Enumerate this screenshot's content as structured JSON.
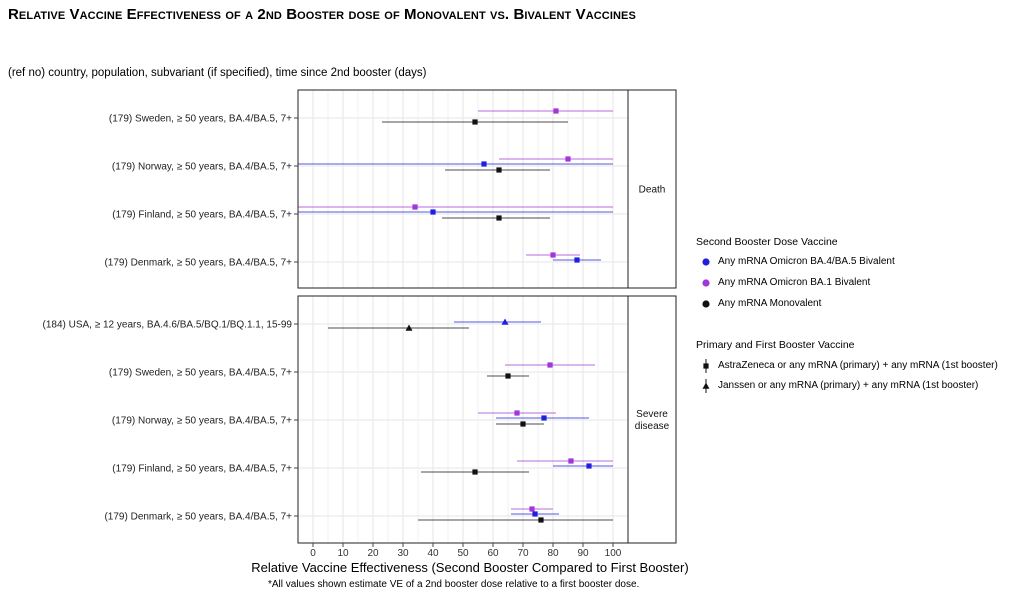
{
  "title": "Relative Vaccine Effectiveness of a 2nd Booster dose of Monovalent vs. Bivalent Vaccines",
  "subtitle": "(ref no) country, population, subvariant (if specified), time since 2nd booster (days)",
  "footnote": "*All values shown estimate VE of a 2nd booster dose relative to a first booster dose.",
  "colors": {
    "bivalent_ba45": "#1f1fe0",
    "bivalent_ba1": "#a236d6",
    "monovalent": "#111111",
    "panel_border": "#222222",
    "grid": "#e6e6e6"
  },
  "legend": {
    "color_title": "Second Booster Dose Vaccine",
    "color_items": [
      {
        "label": "Any mRNA Omicron BA.4/BA.5 Bivalent",
        "color": "#1f1fe0"
      },
      {
        "label": "Any mRNA Omicron BA.1 Bivalent",
        "color": "#a236d6"
      },
      {
        "label": "Any mRNA Monovalent",
        "color": "#111111"
      }
    ],
    "shape_title": "Primary and First Booster Vaccine",
    "shape_items": [
      {
        "label": "AstraZeneca or any mRNA (primary) + any mRNA (1st booster)",
        "shape": "square"
      },
      {
        "label": "Janssen or any mRNA (primary) + any mRNA (1st booster)",
        "shape": "triangle"
      }
    ]
  },
  "chart_data": {
    "type": "forest",
    "xlabel": "Relative Vaccine Effectiveness (Second Booster Compared to First Booster)",
    "xlim": [
      -5,
      105
    ],
    "xticks": [
      0,
      10,
      20,
      30,
      40,
      50,
      60,
      70,
      80,
      90,
      100
    ],
    "grid": true,
    "legend_position": "right",
    "panels": [
      {
        "label": "Death",
        "rows": [
          {
            "label": "(179) Sweden, ≥ 50 years, BA.4/BA.5, 7+",
            "estimates": [
              {
                "vaccine": "Any mRNA Omicron BA.1 Bivalent",
                "shape": "square",
                "ve": 81,
                "lo": 55,
                "hi": 100
              },
              {
                "vaccine": "Any mRNA Monovalent",
                "shape": "square",
                "ve": 54,
                "lo": 23,
                "hi": 85
              }
            ]
          },
          {
            "label": "(179) Norway, ≥ 50 years, BA.4/BA.5, 7+",
            "estimates": [
              {
                "vaccine": "Any mRNA Omicron BA.1 Bivalent",
                "shape": "square",
                "ve": 85,
                "lo": 62,
                "hi": 100
              },
              {
                "vaccine": "Any mRNA Omicron BA.4/BA.5 Bivalent",
                "shape": "square",
                "ve": 57,
                "lo": -5,
                "hi": 100
              },
              {
                "vaccine": "Any mRNA Monovalent",
                "shape": "square",
                "ve": 62,
                "lo": 44,
                "hi": 79
              }
            ]
          },
          {
            "label": "(179) Finland, ≥ 50 years, BA.4/BA.5, 7+",
            "estimates": [
              {
                "vaccine": "Any mRNA Omicron BA.1 Bivalent",
                "shape": "square",
                "ve": 34,
                "lo": -5,
                "hi": 100
              },
              {
                "vaccine": "Any mRNA Omicron BA.4/BA.5 Bivalent",
                "shape": "square",
                "ve": 40,
                "lo": -5,
                "hi": 100
              },
              {
                "vaccine": "Any mRNA Monovalent",
                "shape": "square",
                "ve": 62,
                "lo": 43,
                "hi": 79
              }
            ]
          },
          {
            "label": "(179) Denmark, ≥ 50 years, BA.4/BA.5, 7+",
            "estimates": [
              {
                "vaccine": "Any mRNA Omicron BA.1 Bivalent",
                "shape": "square",
                "ve": 80,
                "lo": 71,
                "hi": 89
              },
              {
                "vaccine": "Any mRNA Omicron BA.4/BA.5 Bivalent",
                "shape": "square",
                "ve": 88,
                "lo": 80,
                "hi": 96
              }
            ]
          }
        ]
      },
      {
        "label": "Severe disease",
        "rows": [
          {
            "label": "(184) USA, ≥ 12 years, BA.4.6/BA.5/BQ.1/BQ.1.1, 15-99",
            "estimates": [
              {
                "vaccine": "Any mRNA Omicron BA.4/BA.5 Bivalent",
                "shape": "triangle",
                "ve": 64,
                "lo": 47,
                "hi": 76
              },
              {
                "vaccine": "Any mRNA Monovalent",
                "shape": "triangle",
                "ve": 32,
                "lo": 5,
                "hi": 52
              }
            ]
          },
          {
            "label": "(179) Sweden, ≥ 50 years, BA.4/BA.5, 7+",
            "estimates": [
              {
                "vaccine": "Any mRNA Omicron BA.1 Bivalent",
                "shape": "square",
                "ve": 79,
                "lo": 64,
                "hi": 94
              },
              {
                "vaccine": "Any mRNA Monovalent",
                "shape": "square",
                "ve": 65,
                "lo": 58,
                "hi": 72
              }
            ]
          },
          {
            "label": "(179) Norway, ≥ 50 years, BA.4/BA.5, 7+",
            "estimates": [
              {
                "vaccine": "Any mRNA Omicron BA.1 Bivalent",
                "shape": "square",
                "ve": 68,
                "lo": 55,
                "hi": 81
              },
              {
                "vaccine": "Any mRNA Omicron BA.4/BA.5 Bivalent",
                "shape": "square",
                "ve": 77,
                "lo": 61,
                "hi": 92
              },
              {
                "vaccine": "Any mRNA Monovalent",
                "shape": "square",
                "ve": 70,
                "lo": 61,
                "hi": 77
              }
            ]
          },
          {
            "label": "(179) Finland, ≥ 50 years, BA.4/BA.5, 7+",
            "estimates": [
              {
                "vaccine": "Any mRNA Omicron BA.1 Bivalent",
                "shape": "square",
                "ve": 86,
                "lo": 68,
                "hi": 100
              },
              {
                "vaccine": "Any mRNA Omicron BA.4/BA.5 Bivalent",
                "shape": "square",
                "ve": 92,
                "lo": 80,
                "hi": 100
              },
              {
                "vaccine": "Any mRNA Monovalent",
                "shape": "square",
                "ve": 54,
                "lo": 36,
                "hi": 72
              }
            ]
          },
          {
            "label": "(179) Denmark, ≥ 50 years, BA.4/BA.5, 7+",
            "estimates": [
              {
                "vaccine": "Any mRNA Omicron BA.1 Bivalent",
                "shape": "square",
                "ve": 73,
                "lo": 66,
                "hi": 80
              },
              {
                "vaccine": "Any mRNA Omicron BA.4/BA.5 Bivalent",
                "shape": "square",
                "ve": 74,
                "lo": 66,
                "hi": 82
              },
              {
                "vaccine": "Any mRNA Monovalent",
                "shape": "square",
                "ve": 76,
                "lo": 35,
                "hi": 100
              }
            ]
          }
        ]
      }
    ]
  }
}
